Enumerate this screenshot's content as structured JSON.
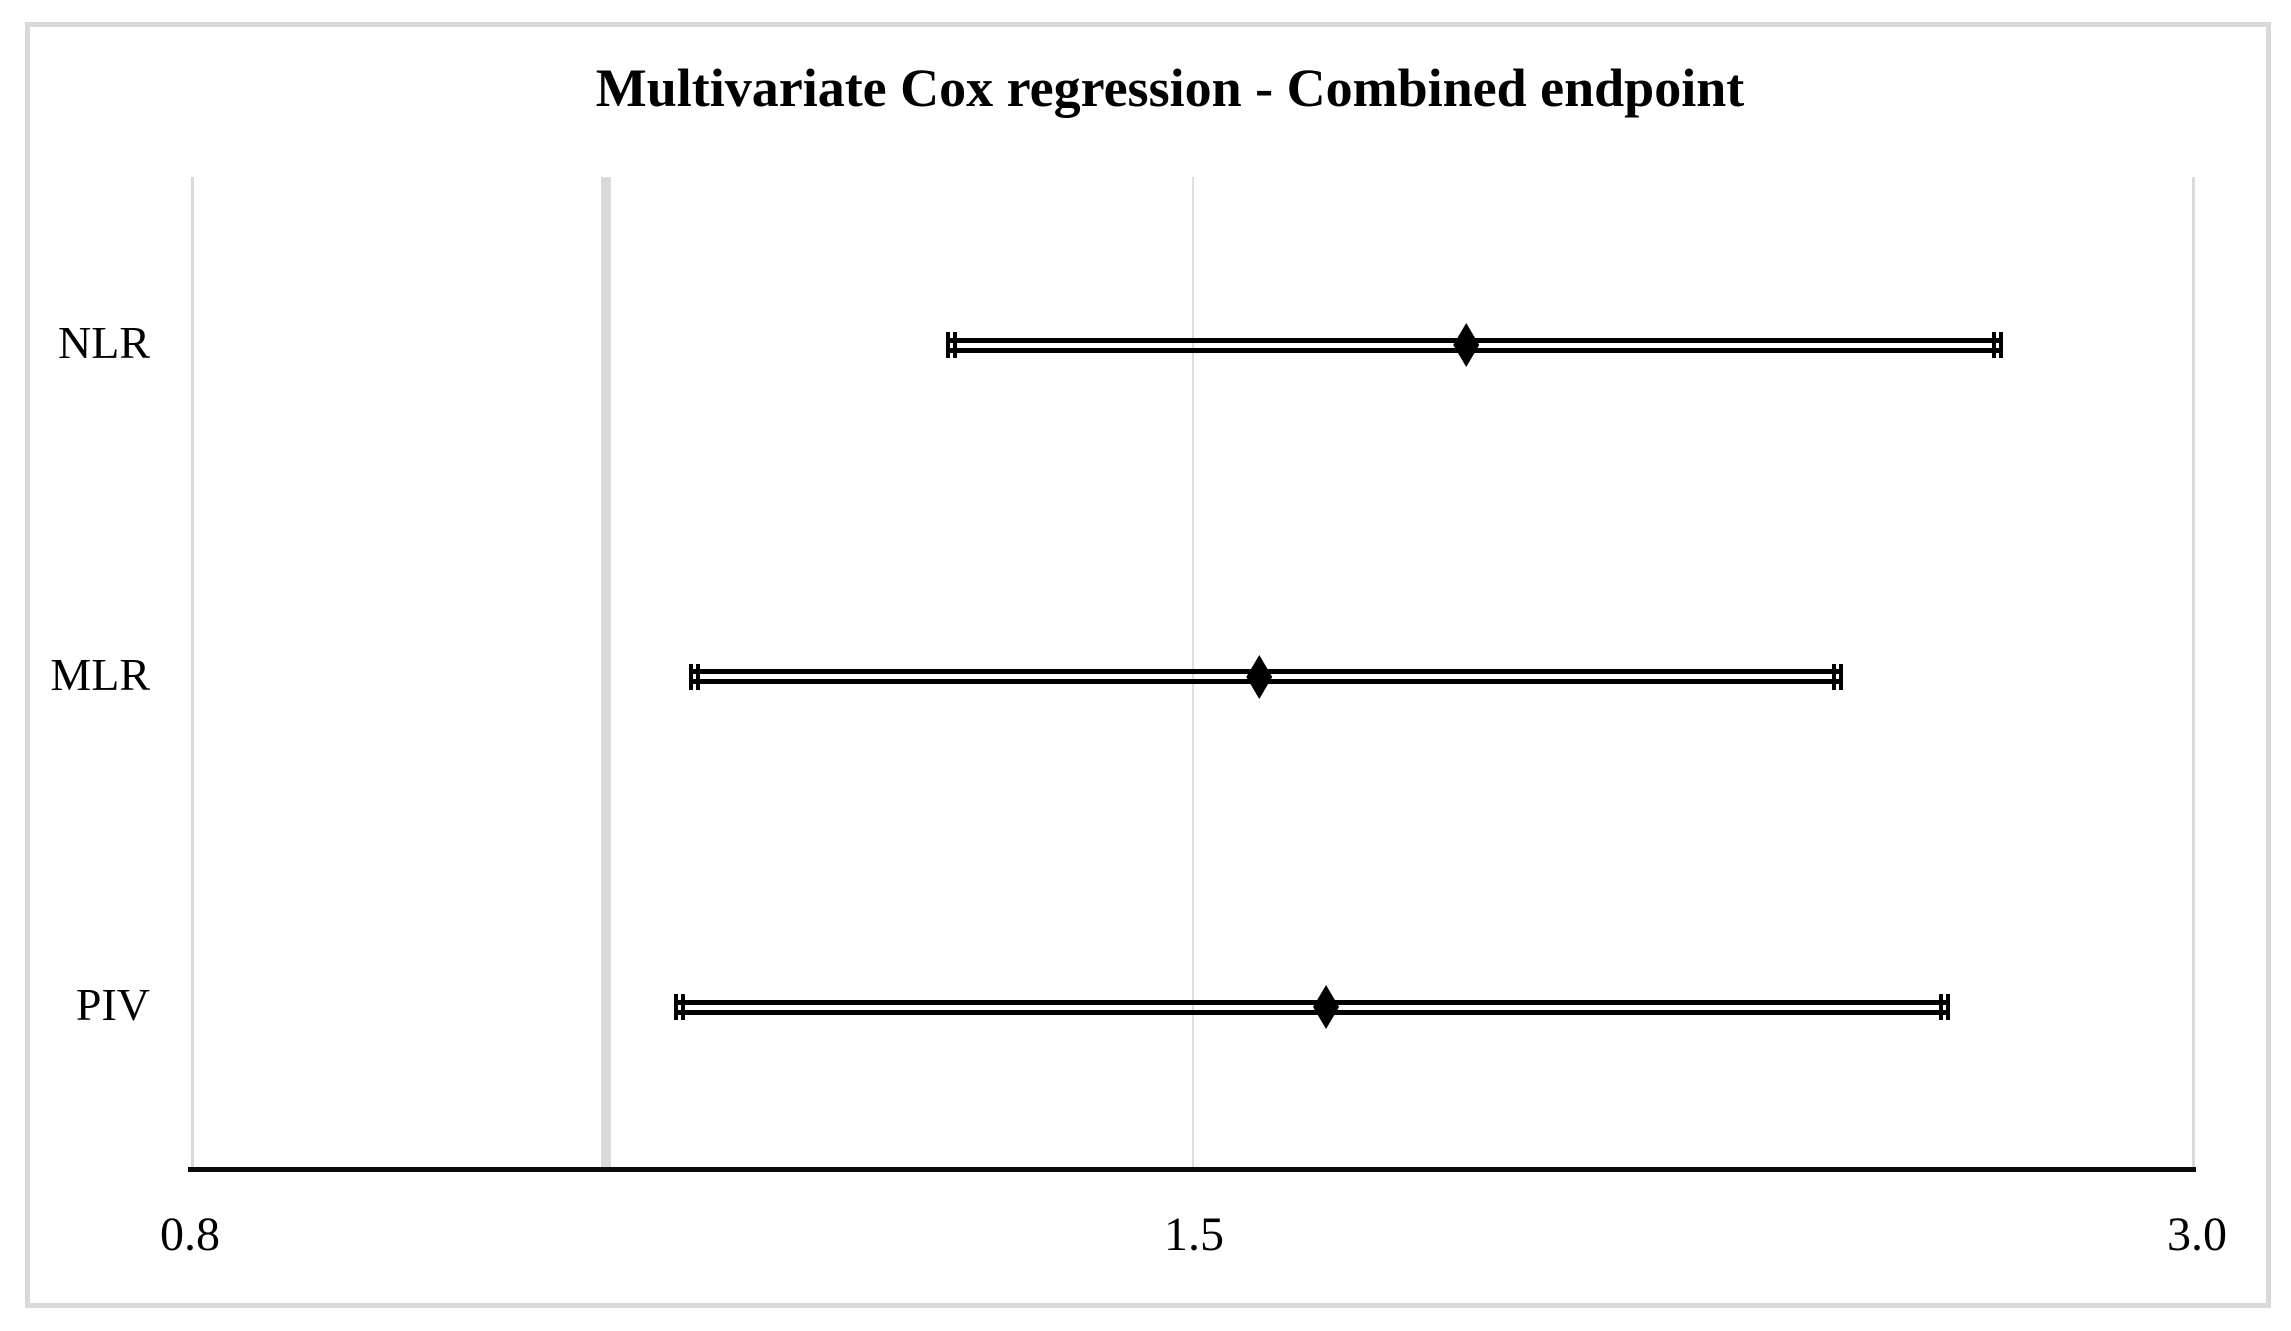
{
  "chart_data": {
    "type": "forest",
    "title": "Multivariate Cox regression - Combined endpoint",
    "orientation": "horizontal",
    "x_axis": {
      "min": 0.8,
      "max": 3.0,
      "ticks": [
        0.8,
        1.5,
        3.0
      ],
      "tick_labels": [
        "0.8",
        "1.5",
        "3.0"
      ],
      "scale": "log-like (1.5 rendered at axis midpoint)"
    },
    "categories": [
      "NLR",
      "MLR",
      "PIV"
    ],
    "rows": [
      {
        "name": "NLR",
        "estimate": 1.91,
        "ci_low": 1.33,
        "ci_high": 2.71
      },
      {
        "name": "MLR",
        "estimate": 1.6,
        "ci_low": 1.15,
        "ci_high": 2.47
      },
      {
        "name": "PIV",
        "estimate": 1.7,
        "ci_low": 1.14,
        "ci_high": 2.63
      }
    ],
    "marker": "diamond",
    "error_bar_style": "double horizontal line with double-tick end caps",
    "reference_line": {
      "x_estimate": 1.09
    },
    "gridlines": [
      1.5
    ],
    "grid": "vertical only",
    "legend_position": "none",
    "colors": {
      "series": "#000000",
      "text": "#000000",
      "bottom_axis": "#0a0a0a",
      "gridline": "#dedede",
      "reference_line": "#d9d9d9",
      "plot_edge_lines": "#d9d9d9",
      "figure_border": "#d9d9d9",
      "background": "#ffffff"
    }
  }
}
